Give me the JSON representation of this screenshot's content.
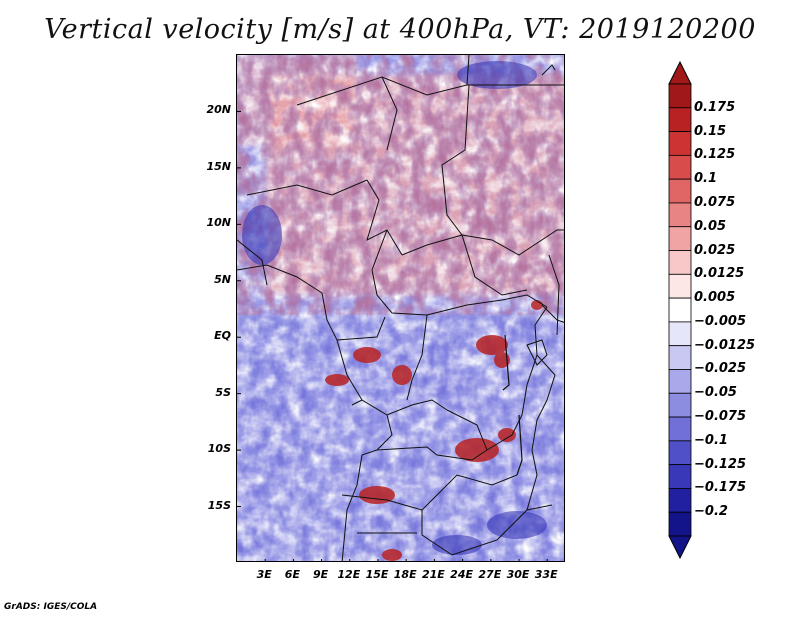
{
  "title": "Vertical velocity [m/s] at 400hPa, VT: 2019120200",
  "footer": "GrADS: IGES/COLA",
  "map": {
    "region": "Central Africa",
    "lat_ticks": [
      "20N",
      "15N",
      "10N",
      "5N",
      "EQ",
      "5S",
      "10S",
      "15S"
    ],
    "lon_ticks": [
      "3E",
      "6E",
      "9E",
      "12E",
      "15E",
      "18E",
      "21E",
      "24E",
      "27E",
      "30E",
      "33E"
    ],
    "lat_range": [
      -20,
      25
    ],
    "lon_range": [
      0,
      35
    ],
    "lat_tick_values": [
      20,
      15,
      10,
      5,
      0,
      -5,
      -10,
      -15
    ],
    "lon_tick_values": [
      3,
      6,
      9,
      12,
      15,
      18,
      21,
      24,
      27,
      30,
      33
    ]
  },
  "colorbar": {
    "labels": [
      "0.175",
      "0.15",
      "0.125",
      "0.1",
      "0.075",
      "0.05",
      "0.025",
      "0.0125",
      "0.005",
      "−0.005",
      "−0.0125",
      "−0.025",
      "−0.05",
      "−0.075",
      "−0.1",
      "−0.125",
      "−0.175",
      "−0.2"
    ],
    "colors": [
      "#a01818",
      "#b82222",
      "#cc3333",
      "#d94c4c",
      "#e06666",
      "#e88484",
      "#f0a4a4",
      "#f8c8c8",
      "#fce6e6",
      "#ffffff",
      "#e6e6fa",
      "#c8c8f2",
      "#a8a8ea",
      "#8c8ce0",
      "#7070d8",
      "#5050c8",
      "#3838b8",
      "#2020a0",
      "#14148a"
    ],
    "over_color": "#a01818",
    "under_color": "#14148a"
  },
  "colors": {
    "positive": "#d04040",
    "negative": "#5a5ad8",
    "neutral": "#ffffff"
  }
}
